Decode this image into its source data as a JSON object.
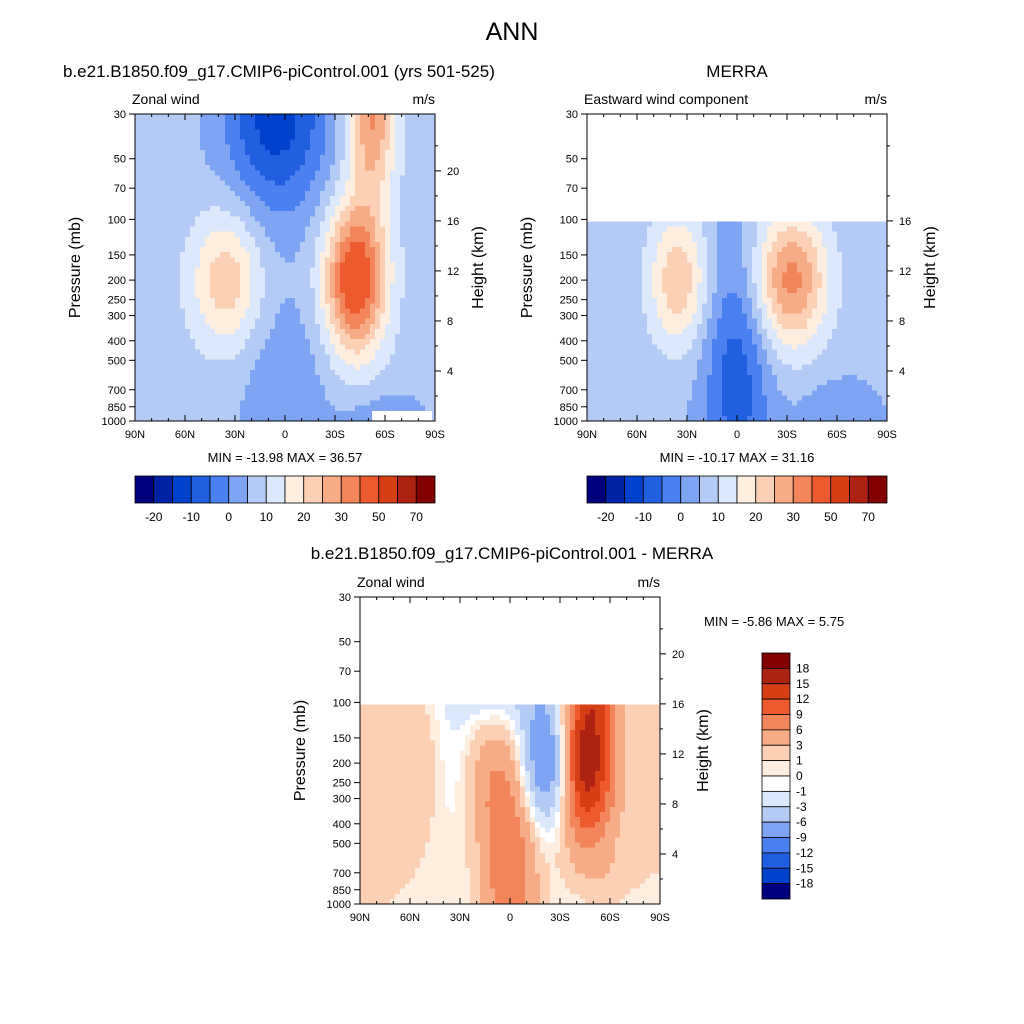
{
  "figure": {
    "title": "ANN"
  },
  "axes": {
    "pressure_label": "Pressure (mb)",
    "height_label": "Height (km)",
    "pressure_ticks": [
      "30",
      "50",
      "70",
      "100",
      "150",
      "200",
      "250",
      "300",
      "400",
      "500",
      "700",
      "850",
      "1000"
    ],
    "lat_ticks": [
      "90N",
      "60N",
      "30N",
      "0",
      "30S",
      "60S",
      "90S"
    ]
  },
  "colorbar_main": {
    "labels": [
      "-20",
      "-10",
      "0",
      "10",
      "20",
      "30",
      "50",
      "70"
    ],
    "colors": [
      "#00007f",
      "#0023a6",
      "#0042cc",
      "#1f5fe0",
      "#4a80f0",
      "#7fa4f3",
      "#b4cbf6",
      "#dce8fb",
      "#fdeedf",
      "#fbd0b4",
      "#f7ab86",
      "#f3855a",
      "#ec5a2d",
      "#d63f15",
      "#ae2211",
      "#830000"
    ]
  },
  "colorbar_diff": {
    "labels": [
      "18",
      "15",
      "12",
      "9",
      "6",
      "3",
      "1",
      "0",
      "-1",
      "-3",
      "-6",
      "-9",
      "-12",
      "-15",
      "-18"
    ],
    "colors": [
      "#830000",
      "#ae2211",
      "#d63f15",
      "#ec5a2d",
      "#f3855a",
      "#f7ab86",
      "#fbd0b4",
      "#fdeedf",
      "#ffffff",
      "#dce8fb",
      "#b4cbf6",
      "#7fa4f3",
      "#4a80f0",
      "#1f5fe0",
      "#0042cc",
      "#00007f"
    ]
  },
  "chart_data": [
    {
      "type": "heatmap",
      "title": "b.e21.B1850.f09_g17.CMIP6-piControl.001 (yrs 501-525)",
      "left_label": "Zonal wind",
      "units": "m/s",
      "xlabel": "",
      "ylabel": "Pressure (mb)",
      "y2label": "Height (km)",
      "x_range": [
        "90N",
        "90S"
      ],
      "y_range_mb": [
        30,
        1000
      ],
      "height_ticks_km": [
        4,
        8,
        12,
        16,
        20
      ],
      "stats_text": "MIN = -13.98  MAX = 36.57",
      "min": -13.98,
      "max": 36.57,
      "data_top_mb": 30,
      "features": [
        {
          "kind": "westerly_jet",
          "hemisphere": "NH",
          "lat": -35,
          "p_mb": 200,
          "peak": 22
        },
        {
          "kind": "westerly_jet",
          "hemisphere": "SH",
          "lat": 45,
          "p_mb": 200,
          "peak": 35
        },
        {
          "kind": "easterlies",
          "lat": 0,
          "p_mb": 30,
          "value": -14
        }
      ]
    },
    {
      "type": "heatmap",
      "title": "MERRA",
      "left_label": "Eastward wind component",
      "units": "m/s",
      "xlabel": "",
      "ylabel": "Pressure (mb)",
      "y2label": "Height (km)",
      "x_range": [
        "90N",
        "90S"
      ],
      "y_range_mb": [
        30,
        1000
      ],
      "height_ticks_km": [
        4,
        8,
        12,
        16
      ],
      "stats_text": "MIN = -10.17  MAX = 31.16",
      "min": -10.17,
      "max": 31.16,
      "data_top_mb": 100,
      "features": [
        {
          "kind": "westerly_jet",
          "hemisphere": "NH",
          "lat": -35,
          "p_mb": 200,
          "peak": 25
        },
        {
          "kind": "westerly_jet",
          "hemisphere": "SH",
          "lat": 30,
          "p_mb": 200,
          "peak": 31
        },
        {
          "kind": "easterlies",
          "lat": 0,
          "p_mb": 700,
          "value": -10
        }
      ]
    },
    {
      "type": "heatmap",
      "title": "b.e21.B1850.f09_g17.CMIP6-piControl.001 - MERRA",
      "left_label": "Zonal wind",
      "units": "m/s",
      "xlabel": "",
      "ylabel": "Pressure (mb)",
      "y2label": "Height (km)",
      "x_range": [
        "90N",
        "90S"
      ],
      "y_range_mb": [
        30,
        1000
      ],
      "height_ticks_km": [
        4,
        8,
        12,
        16,
        20
      ],
      "stats_text": "MIN =  -5.86  MAX =   5.75",
      "min": -5.86,
      "max": 5.75,
      "data_top_mb": 100
    }
  ]
}
